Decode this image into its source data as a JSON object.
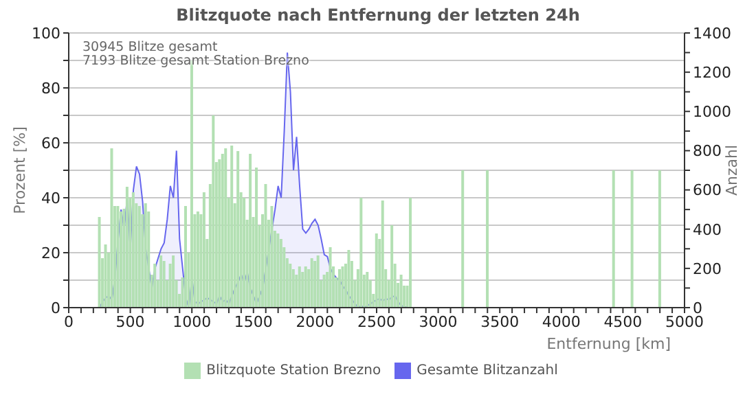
{
  "chart_data": {
    "type": "bar",
    "title": "Blitzquote nach Entfernung der letzten 24h",
    "xlabel": "Entfernung   [km]",
    "ylabel": "Prozent  [%]",
    "y2label": "Anzahl",
    "annotations": [
      "30945 Blitze gesamt",
      "7193 Blitze gesamt Station Brezno"
    ],
    "xlim": [
      0,
      5000
    ],
    "xticks": [
      0,
      {
        "value": 100,
        "label": null
      },
      {
        "value": 200,
        "label": null
      },
      {
        "value": 300,
        "label": null
      },
      {
        "value": 400,
        "label": null
      },
      500,
      {
        "value": 600,
        "label": null
      },
      {
        "value": 700,
        "label": null
      },
      {
        "value": 800,
        "label": null
      },
      {
        "value": 900,
        "label": null
      },
      1000,
      {
        "value": 1100,
        "label": null
      },
      {
        "value": 1200,
        "label": null
      },
      {
        "value": 1300,
        "label": null
      },
      {
        "value": 1400,
        "label": null
      },
      1500,
      {
        "value": 1600,
        "label": null
      },
      {
        "value": 1700,
        "label": null
      },
      {
        "value": 1800,
        "label": null
      },
      {
        "value": 1900,
        "label": null
      },
      2000,
      {
        "value": 2100,
        "label": null
      },
      {
        "value": 2200,
        "label": null
      },
      {
        "value": 2300,
        "label": null
      },
      {
        "value": 2400,
        "label": null
      },
      2500,
      {
        "value": 2600,
        "label": null
      },
      {
        "value": 2700,
        "label": null
      },
      {
        "value": 2800,
        "label": null
      },
      {
        "value": 2900,
        "label": null
      },
      3000,
      {
        "value": 3100,
        "label": null
      },
      {
        "value": 3200,
        "label": null
      },
      {
        "value": 3300,
        "label": null
      },
      {
        "value": 3400,
        "label": null
      },
      3500,
      {
        "value": 3600,
        "label": null
      },
      {
        "value": 3700,
        "label": null
      },
      {
        "value": 3800,
        "label": null
      },
      {
        "value": 3900,
        "label": null
      },
      4000,
      {
        "value": 4100,
        "label": null
      },
      {
        "value": 4200,
        "label": null
      },
      {
        "value": 4300,
        "label": null
      },
      {
        "value": 4400,
        "label": null
      },
      4500,
      {
        "value": 4600,
        "label": null
      },
      {
        "value": 4700,
        "label": null
      },
      {
        "value": 4800,
        "label": null
      },
      {
        "value": 4900,
        "label": null
      },
      5000
    ],
    "ylim": [
      0,
      100
    ],
    "yticks": [
      0,
      {
        "value": 10,
        "label": null
      },
      20,
      {
        "value": 30,
        "label": null
      },
      40,
      {
        "value": 50,
        "label": null
      },
      60,
      {
        "value": 70,
        "label": null
      },
      80,
      {
        "value": 90,
        "label": null
      },
      100
    ],
    "y2lim": [
      0,
      1400
    ],
    "y2ticks": [
      0,
      {
        "value": 100,
        "label": null
      },
      200,
      {
        "value": 300,
        "label": null
      },
      400,
      {
        "value": 500,
        "label": null
      },
      600,
      {
        "value": 700,
        "label": null
      },
      800,
      {
        "value": 900,
        "label": null
      },
      1000,
      {
        "value": 1100,
        "label": null
      },
      1200,
      {
        "value": 1300,
        "label": null
      },
      1400
    ],
    "grid": "y",
    "legend": "bottom",
    "series": [
      {
        "name": "Blitzquote Station Brezno",
        "color": "#b3e0b3",
        "x": [
          250,
          275,
          300,
          325,
          350,
          375,
          400,
          425,
          450,
          475,
          500,
          525,
          550,
          575,
          600,
          625,
          650,
          675,
          700,
          725,
          750,
          775,
          800,
          825,
          850,
          875,
          900,
          925,
          950,
          975,
          1000,
          1025,
          1050,
          1075,
          1100,
          1125,
          1150,
          1175,
          1200,
          1225,
          1250,
          1275,
          1300,
          1325,
          1350,
          1375,
          1400,
          1425,
          1450,
          1475,
          1500,
          1525,
          1550,
          1575,
          1600,
          1625,
          1650,
          1675,
          1700,
          1725,
          1750,
          1775,
          1800,
          1825,
          1850,
          1875,
          1900,
          1925,
          1950,
          1975,
          2000,
          2025,
          2050,
          2075,
          2100,
          2125,
          2150,
          2175,
          2200,
          2225,
          2250,
          2275,
          2300,
          2325,
          2350,
          2375,
          2400,
          2425,
          2450,
          2475,
          2500,
          2525,
          2550,
          2575,
          2600,
          2625,
          2650,
          2675,
          2700,
          2725,
          2750,
          2775,
          3200,
          3400,
          4425,
          4575,
          4800
        ],
        "values": [
          33,
          18,
          23,
          20,
          58,
          37,
          37,
          35,
          36,
          44,
          40,
          42,
          38,
          37,
          34,
          38,
          35,
          12,
          16,
          10,
          19,
          17,
          10,
          16,
          19,
          10,
          5,
          11,
          37,
          20,
          90,
          34,
          35,
          34,
          42,
          25,
          45,
          70,
          53,
          54,
          56,
          58,
          40,
          59,
          38,
          57,
          42,
          40,
          32,
          56,
          33,
          51,
          30,
          34,
          45,
          32,
          37,
          28,
          27,
          25,
          22,
          18,
          16,
          14,
          12,
          15,
          13,
          15,
          14,
          18,
          17,
          19,
          10,
          12,
          13,
          22,
          15,
          11,
          14,
          15,
          16,
          21,
          17,
          10,
          14,
          40,
          12,
          13,
          10,
          5,
          27,
          25,
          39,
          14,
          10,
          30,
          16,
          9,
          12,
          8,
          8,
          40,
          50,
          50,
          50,
          50,
          50
        ]
      },
      {
        "name": "Gesamte Blitzanzahl",
        "type": "area",
        "axis": "y2",
        "color": "#6666ee",
        "x": [
          225,
          250,
          275,
          300,
          325,
          350,
          375,
          400,
          425,
          450,
          475,
          500,
          525,
          550,
          575,
          600,
          625,
          650,
          675,
          700,
          725,
          750,
          775,
          800,
          825,
          850,
          875,
          900,
          925,
          950,
          975,
          1000,
          1025,
          1050,
          1075,
          1100,
          1125,
          1150,
          1175,
          1200,
          1225,
          1250,
          1275,
          1300,
          1325,
          1350,
          1375,
          1400,
          1425,
          1450,
          1475,
          1500,
          1525,
          1550,
          1575,
          1600,
          1625,
          1650,
          1675,
          1700,
          1725,
          1750,
          1775,
          1800,
          1825,
          1850,
          1875,
          1900,
          1925,
          1950,
          1975,
          2000,
          2025,
          2050,
          2075,
          2100,
          2125,
          2150,
          2175,
          2200,
          2225,
          2250,
          2275,
          2300,
          2325,
          2350,
          2375,
          2400,
          2425,
          2450,
          2475,
          2500,
          2525,
          2550,
          2575,
          2600,
          2625,
          2650,
          2675,
          2700,
          2725,
          2750,
          2775
        ],
        "values": [
          0,
          0,
          30,
          50,
          60,
          40,
          150,
          340,
          500,
          400,
          560,
          300,
          600,
          720,
          680,
          540,
          300,
          200,
          100,
          200,
          250,
          300,
          330,
          450,
          620,
          560,
          800,
          350,
          200,
          50,
          0,
          150,
          30,
          20,
          30,
          40,
          50,
          40,
          30,
          20,
          60,
          30,
          40,
          20,
          60,
          100,
          130,
          170,
          130,
          180,
          100,
          60,
          20,
          60,
          100,
          200,
          300,
          400,
          500,
          620,
          560,
          900,
          1300,
          1100,
          700,
          870,
          620,
          400,
          380,
          400,
          430,
          450,
          420,
          350,
          270,
          260,
          200,
          170,
          150,
          140,
          110,
          90,
          60,
          40,
          20,
          0,
          10,
          0,
          10,
          20,
          30,
          40,
          45,
          35,
          45,
          40,
          55,
          60,
          30,
          10,
          5,
          0,
          0
        ]
      }
    ]
  }
}
